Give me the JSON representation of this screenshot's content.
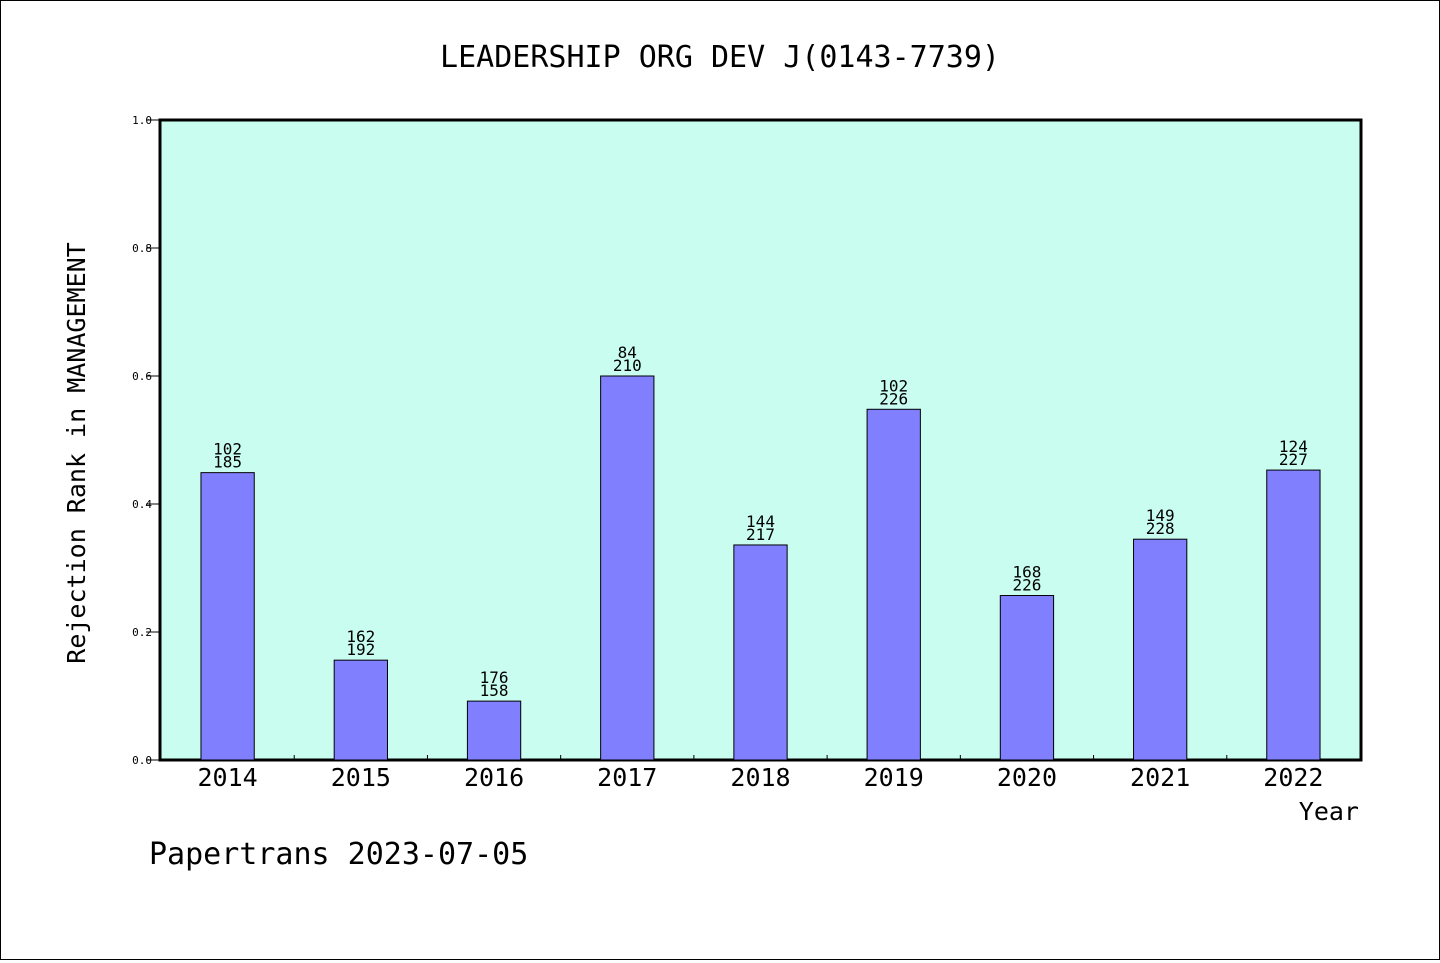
{
  "footer": "Papertrans 2023-07-05",
  "colors": {
    "plot_background": "#c8fdf0",
    "bar_fill": "#8080ff",
    "bar_stroke": "#000000"
  },
  "chart_data": {
    "type": "bar",
    "title": "LEADERSHIP ORG DEV J(0143-7739)",
    "xlabel": "Year",
    "ylabel": "Rejection Rank in MANAGEMENT",
    "ylim": [
      0,
      1.0
    ],
    "yticks": [
      "0.0",
      "0.2",
      "0.4",
      "0.6",
      "0.8",
      "1.0"
    ],
    "grid": false,
    "categories": [
      "2014",
      "2015",
      "2016",
      "2017",
      "2018",
      "2019",
      "2020",
      "2021",
      "2022"
    ],
    "values": [
      0.449,
      0.156,
      0.092,
      0.6,
      0.336,
      0.548,
      0.257,
      0.345,
      0.453
    ],
    "labels_top": [
      "102",
      "162",
      "176",
      "84",
      "144",
      "102",
      "168",
      "149",
      "124"
    ],
    "labels_bottom": [
      "185",
      "192",
      "158",
      "210",
      "217",
      "226",
      "226",
      "228",
      "227"
    ]
  }
}
